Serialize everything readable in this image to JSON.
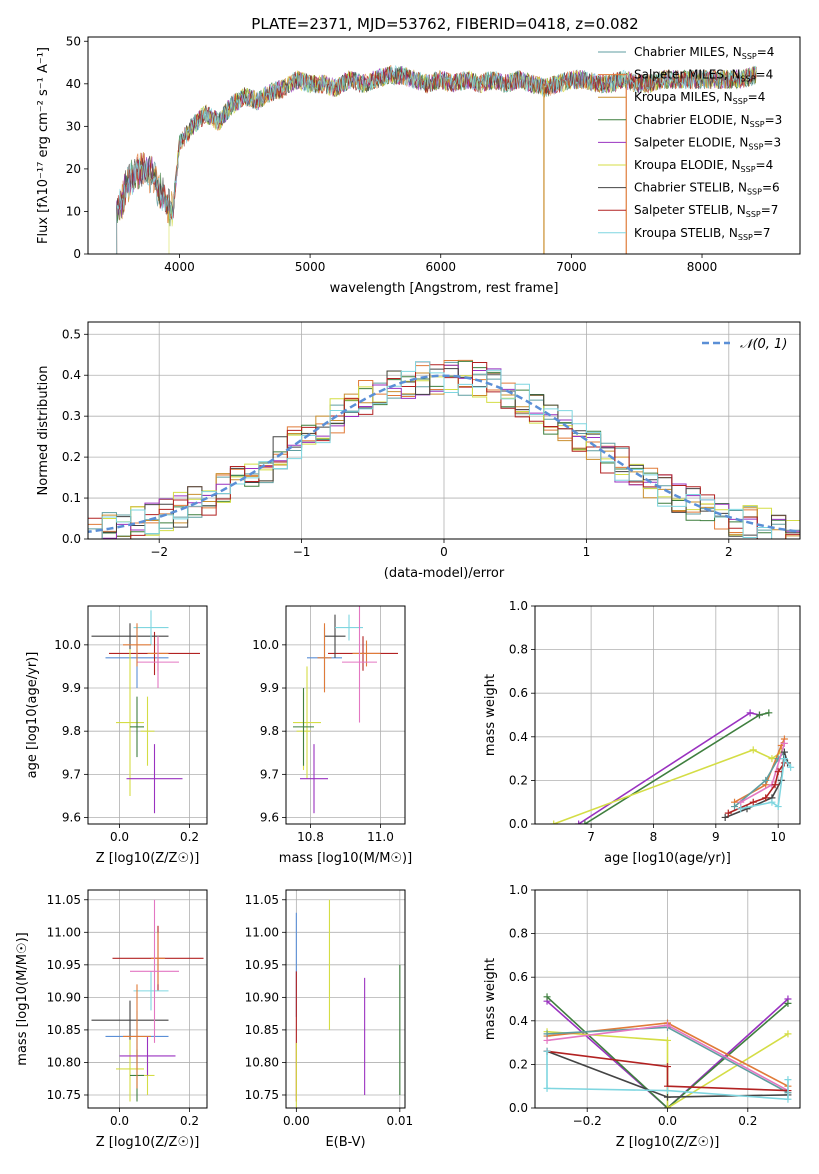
{
  "figure": {
    "title": "PLATE=2371, MJD=53762, FIBERID=0418, z=0.082"
  },
  "legend_colors": [
    "#5f9ea0",
    "#e07b39",
    "#c98e2e",
    "#3f7f3f",
    "#9a32c0",
    "#d4dd45",
    "#444444",
    "#b22222",
    "#7fd6e0"
  ],
  "chart_data": [
    {
      "id": "spectrum",
      "type": "line",
      "title": "PLATE=2371, MJD=53762, FIBERID=0418, z=0.082",
      "xlabel": "wavelength [Angstrom, rest frame]",
      "ylabel": "Flux [fλ10⁻¹⁷ erg cm⁻² s⁻¹ A⁻¹]",
      "xlim": [
        3300,
        8750
      ],
      "ylim": [
        0,
        51
      ],
      "xticks": [
        4000,
        5000,
        6000,
        7000,
        8000
      ],
      "yticks": [
        0,
        10,
        20,
        30,
        40,
        50
      ],
      "legend_position": "top-right",
      "x": [
        3520,
        3600,
        3700,
        3800,
        3900,
        3950,
        4000,
        4100,
        4200,
        4300,
        4400,
        4500,
        4600,
        4700,
        4800,
        4900,
        5000,
        5100,
        5200,
        5300,
        5400,
        5500,
        5600,
        5700,
        5800,
        5900,
        6000,
        6100,
        6200,
        6300,
        6400,
        6500,
        6600,
        6700,
        6800,
        6900,
        7000,
        7100,
        7200,
        7300,
        7400,
        7500,
        7600,
        7700,
        7800,
        7900,
        8000,
        8100,
        8200,
        8300,
        8400
      ],
      "flux": [
        10,
        16,
        20,
        18,
        12,
        10,
        26,
        30,
        33,
        31,
        35,
        37,
        36,
        38,
        39,
        41,
        40,
        40,
        39,
        41,
        40,
        41,
        42,
        42,
        41,
        40,
        41,
        40,
        41,
        40,
        41,
        40,
        41,
        40,
        39,
        40,
        41,
        41,
        40,
        40,
        41,
        40,
        40,
        41,
        41,
        41,
        41,
        41,
        41,
        41,
        42
      ],
      "series": [
        {
          "name": "Chabrier MILES, NSSP=4",
          "label_main": "Chabrier MILES, N",
          "label_sub": "SSP",
          "label_tail": "=4"
        },
        {
          "name": "Salpeter MILES, NSSP=4",
          "label_main": "Salpeter MILES, N",
          "label_sub": "SSP",
          "label_tail": "=4"
        },
        {
          "name": "Kroupa MILES, NSSP=4",
          "label_main": "Kroupa MILES, N",
          "label_sub": "SSP",
          "label_tail": "=4"
        },
        {
          "name": "Chabrier ELODIE, NSSP=3",
          "label_main": "Chabrier ELODIE, N",
          "label_sub": "SSP",
          "label_tail": "=3"
        },
        {
          "name": "Salpeter ELODIE, NSSP=3",
          "label_main": "Salpeter ELODIE, N",
          "label_sub": "SSP",
          "label_tail": "=3"
        },
        {
          "name": "Kroupa ELODIE, NSSP=4",
          "label_main": "Kroupa ELODIE, N",
          "label_sub": "SSP",
          "label_tail": "=4"
        },
        {
          "name": "Chabrier STELIB, NSSP=6",
          "label_main": "Chabrier STELIB, N",
          "label_sub": "SSP",
          "label_tail": "=6"
        },
        {
          "name": "Salpeter STELIB, NSSP=7",
          "label_main": "Salpeter STELIB, N",
          "label_sub": "SSP",
          "label_tail": "=7"
        },
        {
          "name": "Kroupa STELIB, NSSP=7",
          "label_main": "Kroupa STELIB, N",
          "label_sub": "SSP",
          "label_tail": "=7"
        }
      ]
    },
    {
      "id": "residuals",
      "type": "line",
      "xlabel": "(data-model)/error",
      "ylabel": "Normed distribution",
      "xlim": [
        -2.5,
        2.5
      ],
      "ylim": [
        0,
        0.53
      ],
      "xticks": [
        -2,
        -1,
        0,
        1,
        2
      ],
      "yticks": [
        0.0,
        0.1,
        0.2,
        0.3,
        0.4,
        0.5
      ],
      "grid": true,
      "legend_position": "top-right",
      "reference": {
        "name": "N(0,1)",
        "label": "𝒩(0, 1)",
        "mean": 0,
        "sigma": 1
      }
    },
    {
      "id": "age_vs_Z",
      "type": "scatter",
      "xlabel": "Z [log10(Z/Z☉)]",
      "ylabel": "age  [log10(age/yr)]",
      "xlim": [
        -0.09,
        0.25
      ],
      "ylim": [
        9.585,
        10.09
      ],
      "xticks": [
        0.0,
        0.2
      ],
      "yticks": [
        9.6,
        9.7,
        9.8,
        9.9,
        10.0
      ],
      "grid": true,
      "points": [
        {
          "x": 0.05,
          "y": 9.97,
          "xerr": 0.09,
          "yerr": 0.07
        },
        {
          "x": 0.1,
          "y": 9.98,
          "xerr": 0.13,
          "yerr": 0.05
        },
        {
          "x": 0.08,
          "y": 9.8,
          "xerr": 0.02,
          "yerr": 0.08
        },
        {
          "x": 0.03,
          "y": 9.82,
          "xerr": 0.04,
          "yerr": 0.17
        },
        {
          "x": 0.1,
          "y": 9.69,
          "xerr": 0.08,
          "yerr": 0.08
        },
        {
          "x": 0.05,
          "y": 9.81,
          "xerr": 0.02,
          "yerr": 0.07
        },
        {
          "x": 0.03,
          "y": 10.02,
          "xerr": 0.11,
          "yerr": 0.03
        },
        {
          "x": 0.11,
          "y": 9.98,
          "xerr": 0.03,
          "yerr": 0.04
        },
        {
          "x": 0.09,
          "y": 10.04,
          "xerr": 0.05,
          "yerr": 0.04
        },
        {
          "x": 0.11,
          "y": 9.96,
          "xerr": 0.06,
          "yerr": 0.06
        },
        {
          "x": 0.05,
          "y": 10.0,
          "xerr": 0.04,
          "yerr": 0.05
        }
      ]
    },
    {
      "id": "age_vs_mass",
      "type": "scatter",
      "xlabel": "mass [log10(M/M☉)]",
      "xlim": [
        10.73,
        11.07
      ],
      "ylim": [
        9.585,
        10.09
      ],
      "xticks": [
        10.8,
        11.0
      ],
      "yticks": [
        9.6,
        9.7,
        9.8,
        9.9,
        10.0
      ],
      "grid": true,
      "points": [
        {
          "x": 10.84,
          "y": 9.97,
          "xerr": 0.05,
          "yerr": 0.07
        },
        {
          "x": 10.95,
          "y": 9.98,
          "xerr": 0.1,
          "yerr": 0.04
        },
        {
          "x": 10.78,
          "y": 9.8,
          "xerr": 0.02,
          "yerr": 0.09
        },
        {
          "x": 10.79,
          "y": 9.82,
          "xerr": 0.04,
          "yerr": 0.13
        },
        {
          "x": 10.81,
          "y": 9.69,
          "xerr": 0.04,
          "yerr": 0.08
        },
        {
          "x": 10.78,
          "y": 9.81,
          "xerr": 0.03,
          "yerr": 0.09
        },
        {
          "x": 10.87,
          "y": 10.02,
          "xerr": 0.03,
          "yerr": 0.05
        },
        {
          "x": 10.96,
          "y": 9.98,
          "xerr": 0.04,
          "yerr": 0.03
        },
        {
          "x": 10.91,
          "y": 10.04,
          "xerr": 0.04,
          "yerr": 0.03
        },
        {
          "x": 10.94,
          "y": 9.96,
          "xerr": 0.05,
          "yerr": 0.14
        },
        {
          "x": 10.84,
          "y": 9.97,
          "xerr": 0.02,
          "yerr": 0.08
        }
      ]
    },
    {
      "id": "weight_vs_age",
      "type": "line",
      "xlabel": "age  [log10(age/yr)]",
      "ylabel": "mass weight",
      "xlim": [
        6.1,
        10.35
      ],
      "ylim": [
        0.0,
        1.0
      ],
      "xticks": [
        7,
        8,
        9,
        10
      ],
      "yticks": [
        0.0,
        0.2,
        0.4,
        0.6,
        0.8,
        1.0
      ],
      "grid": true,
      "series": [
        {
          "color": "#9a32c0",
          "x": [
            6.8,
            9.55,
            9.7
          ],
          "y": [
            0.0,
            0.51,
            0.5
          ]
        },
        {
          "color": "#3f7f3f",
          "x": [
            6.9,
            9.7,
            9.85
          ],
          "y": [
            0.0,
            0.5,
            0.51
          ]
        },
        {
          "color": "#d4dd45",
          "x": [
            6.4,
            9.6,
            9.9,
            10.05
          ],
          "y": [
            0.0,
            0.34,
            0.3,
            0.33
          ]
        },
        {
          "color": "#e07b39",
          "x": [
            9.3,
            9.8,
            10.05,
            10.1
          ],
          "y": [
            0.1,
            0.18,
            0.36,
            0.39
          ]
        },
        {
          "color": "#5f9ea0",
          "x": [
            9.3,
            9.8,
            10.0,
            10.1
          ],
          "y": [
            0.08,
            0.2,
            0.3,
            0.33
          ]
        },
        {
          "color": "#e377c2",
          "x": [
            9.4,
            9.9,
            10.1
          ],
          "y": [
            0.1,
            0.18,
            0.37
          ]
        },
        {
          "color": "#444444",
          "x": [
            9.15,
            9.5,
            9.9,
            10.05,
            10.1,
            10.15
          ],
          "y": [
            0.03,
            0.07,
            0.12,
            0.2,
            0.33,
            0.28
          ]
        },
        {
          "color": "#b22222",
          "x": [
            9.2,
            9.6,
            9.8,
            9.95,
            10.0,
            10.1
          ],
          "y": [
            0.05,
            0.1,
            0.12,
            0.18,
            0.24,
            0.28
          ]
        },
        {
          "color": "#7fd6e0",
          "x": [
            9.4,
            9.9,
            10.0,
            10.1,
            10.2
          ],
          "y": [
            0.07,
            0.1,
            0.08,
            0.3,
            0.26
          ]
        }
      ]
    },
    {
      "id": "mass_vs_Z",
      "type": "scatter",
      "xlabel": "Z [log10(Z/Z☉)]",
      "ylabel": "mass [log10(M/M☉)]",
      "xlim": [
        -0.09,
        0.25
      ],
      "ylim": [
        10.73,
        11.065
      ],
      "xticks": [
        0.0,
        0.2
      ],
      "yticks": [
        10.75,
        10.8,
        10.85,
        10.9,
        10.95,
        11.0,
        11.05
      ],
      "grid": true,
      "points": [
        {
          "x": 0.05,
          "y": 10.84,
          "xerr": 0.09,
          "yerr": 0.04
        },
        {
          "x": 0.11,
          "y": 10.96,
          "xerr": 0.13,
          "yerr": 0.05
        },
        {
          "x": 0.08,
          "y": 10.78,
          "xerr": 0.02,
          "yerr": 0.03
        },
        {
          "x": 0.03,
          "y": 10.79,
          "xerr": 0.04,
          "yerr": 0.05
        },
        {
          "x": 0.08,
          "y": 10.81,
          "xerr": 0.08,
          "yerr": 0.03
        },
        {
          "x": 0.05,
          "y": 10.78,
          "xerr": 0.02,
          "yerr": 0.04
        },
        {
          "x": 0.03,
          "y": 10.865,
          "xerr": 0.11,
          "yerr": 0.03
        },
        {
          "x": 0.11,
          "y": 10.96,
          "xerr": 0.02,
          "yerr": 0.04
        },
        {
          "x": 0.09,
          "y": 10.91,
          "xerr": 0.05,
          "yerr": 0.03
        },
        {
          "x": 0.1,
          "y": 10.94,
          "xerr": 0.07,
          "yerr": 0.11
        },
        {
          "x": 0.05,
          "y": 10.84,
          "xerr": 0.04,
          "yerr": 0.08
        }
      ]
    },
    {
      "id": "mass_vs_ebv",
      "type": "scatter",
      "xlabel": "E(B-V)",
      "xlim": [
        -0.001,
        0.0105
      ],
      "ylim": [
        10.73,
        11.065
      ],
      "xticks": [
        0.0,
        0.01
      ],
      "yticks": [
        10.75,
        10.8,
        10.85,
        10.9,
        10.95,
        11.0,
        11.05
      ],
      "grid": true,
      "points": [
        {
          "x": 0.0,
          "y": 10.95,
          "yerr": 0.08
        },
        {
          "x": 0.0,
          "y": 10.84,
          "yerr": 0.1
        },
        {
          "x": 0.0,
          "y": 10.78,
          "yerr": 0.05
        },
        {
          "x": 0.0032,
          "y": 10.95,
          "yerr": 0.1
        },
        {
          "x": 0.0066,
          "y": 10.84,
          "yerr": 0.09
        },
        {
          "x": 0.01,
          "y": 10.85,
          "yerr": 0.1
        }
      ]
    },
    {
      "id": "weight_vs_Z",
      "type": "line",
      "xlabel": "Z [log10(Z/Z☉)]",
      "ylabel": "mass weight",
      "xlim": [
        -0.33,
        0.33
      ],
      "ylim": [
        0.0,
        1.0
      ],
      "xticks": [
        -0.2,
        0.0,
        0.2
      ],
      "yticks": [
        0.0,
        0.2,
        0.4,
        0.6,
        0.8,
        1.0
      ],
      "grid": true,
      "series": [
        {
          "color": "#9a32c0",
          "x": [
            -0.3,
            0.0,
            0.3
          ],
          "y": [
            0.49,
            0.0,
            0.5
          ]
        },
        {
          "color": "#3f7f3f",
          "x": [
            -0.3,
            0.0,
            0.3
          ],
          "y": [
            0.51,
            0.0,
            0.48
          ]
        },
        {
          "color": "#d4dd45",
          "x": [
            -0.3,
            0.0,
            0.0,
            0.3
          ],
          "y": [
            0.35,
            0.31,
            0.0,
            0.34
          ]
        },
        {
          "color": "#e07b39",
          "x": [
            -0.3,
            0.0,
            0.3
          ],
          "y": [
            0.33,
            0.39,
            0.1
          ]
        },
        {
          "color": "#5f9ea0",
          "x": [
            -0.3,
            0.0,
            0.3
          ],
          "y": [
            0.34,
            0.37,
            0.07
          ]
        },
        {
          "color": "#e377c2",
          "x": [
            -0.3,
            0.0,
            0.3
          ],
          "y": [
            0.31,
            0.38,
            0.08
          ]
        },
        {
          "color": "#444444",
          "x": [
            -0.3,
            0.0,
            0.3
          ],
          "y": [
            0.26,
            0.05,
            0.06
          ]
        },
        {
          "color": "#b22222",
          "x": [
            -0.3,
            0.0,
            0.0,
            0.3
          ],
          "y": [
            0.26,
            0.19,
            0.1,
            0.08
          ]
        },
        {
          "color": "#7fd6e0",
          "x": [
            -0.3,
            -0.3,
            0.0,
            0.3,
            0.3
          ],
          "y": [
            0.26,
            0.09,
            0.08,
            0.04,
            0.13
          ]
        }
      ]
    }
  ]
}
